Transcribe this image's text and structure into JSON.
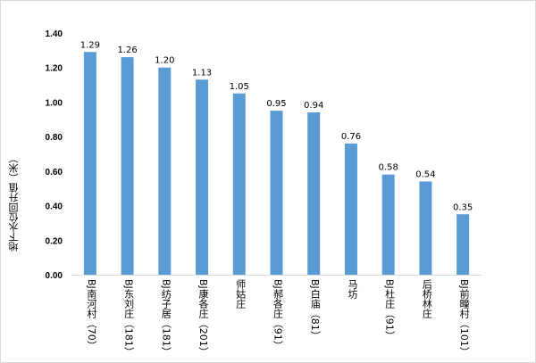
{
  "chart_data": {
    "type": "bar",
    "title": "",
    "xlabel": "",
    "ylabel": "地下水位回升值（米）",
    "ylim": [
      0,
      1.4
    ],
    "yticks": [
      "0.00",
      "0.20",
      "0.40",
      "0.60",
      "0.80",
      "1.00",
      "1.20",
      "1.40"
    ],
    "grid": false,
    "categories": [
      "BJ南河村（70）",
      "BJ东刘庄（181）",
      "BJ纺子居（181）",
      "BJ康各庄（201）",
      "师姑庄",
      "BJ郝各庄（91）",
      "BJ白庙（81）",
      "马坊",
      "BJ杜庄（91）",
      "后桥林庄",
      "BJ前疃村（101）"
    ],
    "values": [
      1.29,
      1.26,
      1.2,
      1.13,
      1.05,
      0.95,
      0.94,
      0.76,
      0.58,
      0.54,
      0.35
    ],
    "data_labels": [
      "1.29",
      "1.26",
      "1.20",
      "1.13",
      "1.05",
      "0.95",
      "0.94",
      "0.76",
      "0.58",
      "0.54",
      "0.35"
    ],
    "bar_color": "#5b9bd5"
  }
}
